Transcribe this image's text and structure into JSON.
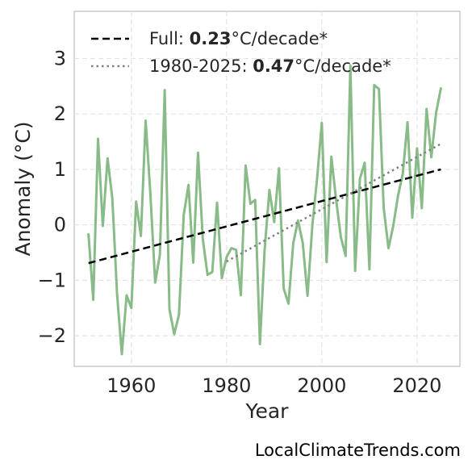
{
  "chart_data": {
    "type": "line",
    "xlabel": "Year",
    "ylabel": "Anomaly (°C)",
    "xlim": [
      1948,
      2029
    ],
    "ylim": [
      -2.55,
      3.85
    ],
    "xticks": [
      1960,
      1980,
      2000,
      2020
    ],
    "yticks": [
      -2,
      -1,
      0,
      1,
      2,
      3
    ],
    "ytick_labels": [
      "−2",
      "−1",
      "0",
      "1",
      "2",
      "3"
    ],
    "grid": true,
    "legend_position": "top-left",
    "series": [
      {
        "color": "#88bb88",
        "x": [
          1951,
          1952,
          1953,
          1954,
          1955,
          1956,
          1957,
          1958,
          1959,
          1960,
          1961,
          1962,
          1963,
          1964,
          1965,
          1966,
          1967,
          1968,
          1969,
          1970,
          1971,
          1972,
          1973,
          1974,
          1975,
          1976,
          1977,
          1978,
          1979,
          1980,
          1981,
          1982,
          1983,
          1984,
          1985,
          1986,
          1987,
          1988,
          1989,
          1990,
          1991,
          1992,
          1993,
          1994,
          1995,
          1996,
          1997,
          1998,
          1999,
          2000,
          2001,
          2002,
          2003,
          2004,
          2005,
          2006,
          2007,
          2008,
          2009,
          2010,
          2011,
          2012,
          2013,
          2014,
          2015,
          2016,
          2017,
          2018,
          2019,
          2020,
          2021,
          2022,
          2023,
          2024,
          2025
        ],
        "values": [
          -0.17,
          -1.35,
          1.55,
          -0.02,
          1.2,
          0.48,
          -1.25,
          -2.33,
          -1.27,
          -1.5,
          0.42,
          -0.2,
          1.88,
          0.55,
          -1.04,
          -0.53,
          2.43,
          -1.52,
          -1.97,
          -1.62,
          0.18,
          0.72,
          -0.68,
          1.3,
          -0.25,
          -0.9,
          -0.85,
          0.4,
          -0.96,
          -0.58,
          -0.42,
          -0.45,
          -1.27,
          1.07,
          0.38,
          0.45,
          -2.15,
          -0.43,
          0.63,
          0.05,
          1.02,
          -1.15,
          -1.42,
          -0.33,
          0.08,
          -0.33,
          -1.28,
          -0.02,
          0.83,
          1.84,
          -0.67,
          1.23,
          0.45,
          -0.22,
          -0.56,
          2.87,
          -0.83,
          0.83,
          1.12,
          -0.8,
          2.52,
          2.45,
          0.3,
          -0.42,
          -0.02,
          0.52,
          0.92,
          1.85,
          0.13,
          1.38,
          0.3,
          2.09,
          1.22,
          2.02,
          2.46
        ]
      }
    ],
    "trends": [
      {
        "style": "dashed",
        "color": "#000000",
        "x": [
          1951,
          2025
        ],
        "values": [
          -0.69,
          1.0
        ],
        "legend_prefix": "Full: ",
        "legend_value": "0.23",
        "legend_suffix": "°C/decade*"
      },
      {
        "style": "dotted",
        "color": "#808080",
        "x": [
          1980,
          2025
        ],
        "values": [
          -0.66,
          1.46
        ],
        "legend_prefix": "1980-2025: ",
        "legend_value": "0.47",
        "legend_suffix": "°C/decade*"
      }
    ]
  },
  "source_label": "LocalClimateTrends.com"
}
